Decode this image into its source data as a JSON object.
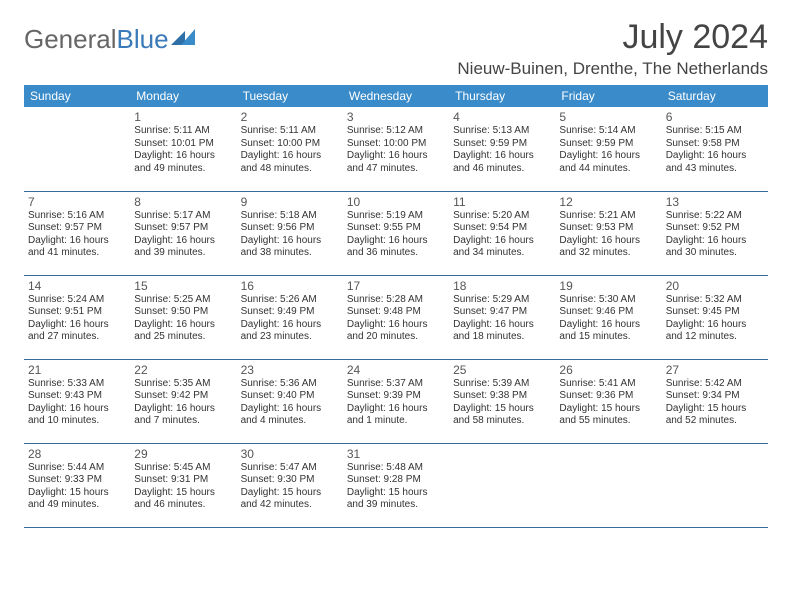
{
  "logo": {
    "general": "General",
    "blue": "Blue"
  },
  "title": "July 2024",
  "location": "Nieuw-Buinen, Drenthe, The Netherlands",
  "colors": {
    "header_bg": "#3a8bc9",
    "header_text": "#ffffff",
    "border": "#3a6a9a",
    "logo_blue": "#3a7ab8",
    "logo_gray": "#666666",
    "text": "#333333"
  },
  "weekdays": [
    "Sunday",
    "Monday",
    "Tuesday",
    "Wednesday",
    "Thursday",
    "Friday",
    "Saturday"
  ],
  "weeks": [
    [
      null,
      {
        "n": "1",
        "sr": "5:11 AM",
        "ss": "10:01 PM",
        "dl": "16 hours and 49 minutes."
      },
      {
        "n": "2",
        "sr": "5:11 AM",
        "ss": "10:00 PM",
        "dl": "16 hours and 48 minutes."
      },
      {
        "n": "3",
        "sr": "5:12 AM",
        "ss": "10:00 PM",
        "dl": "16 hours and 47 minutes."
      },
      {
        "n": "4",
        "sr": "5:13 AM",
        "ss": "9:59 PM",
        "dl": "16 hours and 46 minutes."
      },
      {
        "n": "5",
        "sr": "5:14 AM",
        "ss": "9:59 PM",
        "dl": "16 hours and 44 minutes."
      },
      {
        "n": "6",
        "sr": "5:15 AM",
        "ss": "9:58 PM",
        "dl": "16 hours and 43 minutes."
      }
    ],
    [
      {
        "n": "7",
        "sr": "5:16 AM",
        "ss": "9:57 PM",
        "dl": "16 hours and 41 minutes."
      },
      {
        "n": "8",
        "sr": "5:17 AM",
        "ss": "9:57 PM",
        "dl": "16 hours and 39 minutes."
      },
      {
        "n": "9",
        "sr": "5:18 AM",
        "ss": "9:56 PM",
        "dl": "16 hours and 38 minutes."
      },
      {
        "n": "10",
        "sr": "5:19 AM",
        "ss": "9:55 PM",
        "dl": "16 hours and 36 minutes."
      },
      {
        "n": "11",
        "sr": "5:20 AM",
        "ss": "9:54 PM",
        "dl": "16 hours and 34 minutes."
      },
      {
        "n": "12",
        "sr": "5:21 AM",
        "ss": "9:53 PM",
        "dl": "16 hours and 32 minutes."
      },
      {
        "n": "13",
        "sr": "5:22 AM",
        "ss": "9:52 PM",
        "dl": "16 hours and 30 minutes."
      }
    ],
    [
      {
        "n": "14",
        "sr": "5:24 AM",
        "ss": "9:51 PM",
        "dl": "16 hours and 27 minutes."
      },
      {
        "n": "15",
        "sr": "5:25 AM",
        "ss": "9:50 PM",
        "dl": "16 hours and 25 minutes."
      },
      {
        "n": "16",
        "sr": "5:26 AM",
        "ss": "9:49 PM",
        "dl": "16 hours and 23 minutes."
      },
      {
        "n": "17",
        "sr": "5:28 AM",
        "ss": "9:48 PM",
        "dl": "16 hours and 20 minutes."
      },
      {
        "n": "18",
        "sr": "5:29 AM",
        "ss": "9:47 PM",
        "dl": "16 hours and 18 minutes."
      },
      {
        "n": "19",
        "sr": "5:30 AM",
        "ss": "9:46 PM",
        "dl": "16 hours and 15 minutes."
      },
      {
        "n": "20",
        "sr": "5:32 AM",
        "ss": "9:45 PM",
        "dl": "16 hours and 12 minutes."
      }
    ],
    [
      {
        "n": "21",
        "sr": "5:33 AM",
        "ss": "9:43 PM",
        "dl": "16 hours and 10 minutes."
      },
      {
        "n": "22",
        "sr": "5:35 AM",
        "ss": "9:42 PM",
        "dl": "16 hours and 7 minutes."
      },
      {
        "n": "23",
        "sr": "5:36 AM",
        "ss": "9:40 PM",
        "dl": "16 hours and 4 minutes."
      },
      {
        "n": "24",
        "sr": "5:37 AM",
        "ss": "9:39 PM",
        "dl": "16 hours and 1 minute."
      },
      {
        "n": "25",
        "sr": "5:39 AM",
        "ss": "9:38 PM",
        "dl": "15 hours and 58 minutes."
      },
      {
        "n": "26",
        "sr": "5:41 AM",
        "ss": "9:36 PM",
        "dl": "15 hours and 55 minutes."
      },
      {
        "n": "27",
        "sr": "5:42 AM",
        "ss": "9:34 PM",
        "dl": "15 hours and 52 minutes."
      }
    ],
    [
      {
        "n": "28",
        "sr": "5:44 AM",
        "ss": "9:33 PM",
        "dl": "15 hours and 49 minutes."
      },
      {
        "n": "29",
        "sr": "5:45 AM",
        "ss": "9:31 PM",
        "dl": "15 hours and 46 minutes."
      },
      {
        "n": "30",
        "sr": "5:47 AM",
        "ss": "9:30 PM",
        "dl": "15 hours and 42 minutes."
      },
      {
        "n": "31",
        "sr": "5:48 AM",
        "ss": "9:28 PM",
        "dl": "15 hours and 39 minutes."
      },
      null,
      null,
      null
    ]
  ],
  "labels": {
    "sunrise": "Sunrise:",
    "sunset": "Sunset:",
    "daylight": "Daylight:"
  }
}
